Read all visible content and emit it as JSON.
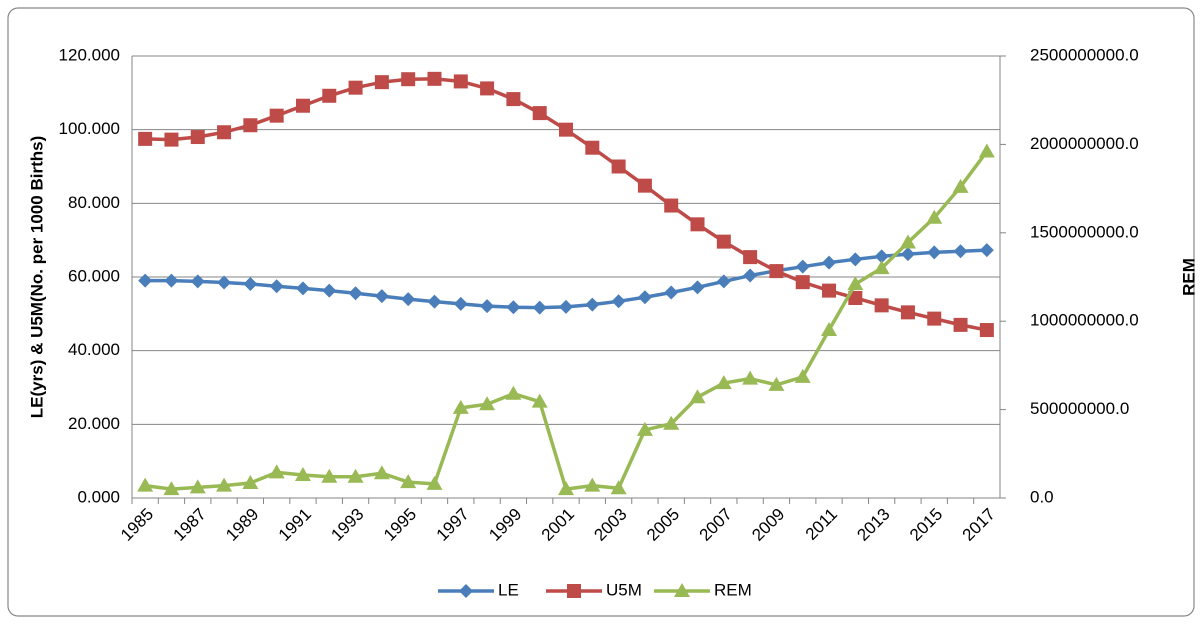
{
  "chart_data": {
    "type": "line",
    "y_label": "LE(yrs) & U5M(No. per 1000 Births)",
    "y2_label": "REM",
    "categories": [
      "1985",
      null,
      "1987",
      null,
      "1989",
      null,
      "1991",
      null,
      "1993",
      null,
      "1995",
      null,
      "1997",
      null,
      "1999",
      null,
      "2001",
      null,
      "2003",
      null,
      "2005",
      null,
      "2007",
      null,
      "2009",
      null,
      "2011",
      null,
      "2013",
      null,
      "2015",
      null,
      "2017"
    ],
    "series": [
      {
        "name": "LE",
        "color": "#4a7ebb",
        "marker": "diamond",
        "values": [
          59.0,
          59.0,
          58.8,
          58.5,
          58.1,
          57.5,
          56.9,
          56.3,
          55.6,
          54.8,
          54.0,
          53.3,
          52.7,
          52.1,
          51.8,
          51.7,
          51.9,
          52.5,
          53.4,
          54.5,
          55.8,
          57.2,
          58.8,
          60.4,
          61.7,
          62.8,
          63.9,
          64.8,
          65.6,
          66.2,
          66.7,
          67.0,
          67.3
        ]
      },
      {
        "name": "U5M",
        "color": "#be4b48",
        "marker": "square",
        "values": [
          97.5,
          97.3,
          98.0,
          99.3,
          101.2,
          103.8,
          106.5,
          109.2,
          111.4,
          112.9,
          113.7,
          113.8,
          113.1,
          111.2,
          108.3,
          104.5,
          100.0,
          95.1,
          90.0,
          84.8,
          79.4,
          74.3,
          69.6,
          65.4,
          61.6,
          58.6,
          56.3,
          54.3,
          52.3,
          50.4,
          48.7,
          47.0,
          45.6
        ]
      },
      {
        "name": "REM",
        "color": "#98b954",
        "marker": "triangle",
        "axis": "y2",
        "values": [
          70000000,
          50000000,
          60000000,
          70000000,
          85000000,
          145000000,
          130000000,
          120000000,
          120000000,
          140000000,
          90000000,
          80000000,
          510000000,
          530000000,
          590000000,
          545000000,
          50000000,
          70000000,
          55000000,
          385000000,
          420000000,
          570000000,
          650000000,
          675000000,
          640000000,
          685000000,
          950000000,
          1210000000,
          1300000000,
          1445000000,
          1585000000,
          1760000000,
          1960000000
        ]
      }
    ],
    "ylim": [
      0,
      120
    ],
    "yticks": [
      {
        "value": 0,
        "label": "0.000"
      },
      {
        "value": 20,
        "label": "20.000"
      },
      {
        "value": 40,
        "label": "40.000"
      },
      {
        "value": 60,
        "label": "60.000"
      },
      {
        "value": 80,
        "label": "80.000"
      },
      {
        "value": 100,
        "label": "100.000"
      },
      {
        "value": 120,
        "label": "120.000"
      }
    ],
    "y2lim": [
      0,
      2500000000
    ],
    "y2ticks": [
      {
        "value": 0,
        "label": "0.0"
      },
      {
        "value": 500000000,
        "label": "500000000.0"
      },
      {
        "value": 1000000000,
        "label": "1000000000.0"
      },
      {
        "value": 1500000000,
        "label": "1500000000.0"
      },
      {
        "value": 2000000000,
        "label": "2000000000.0"
      },
      {
        "value": 2500000000,
        "label": "2500000000.0"
      }
    ],
    "grid": true,
    "legend": "bottom"
  }
}
